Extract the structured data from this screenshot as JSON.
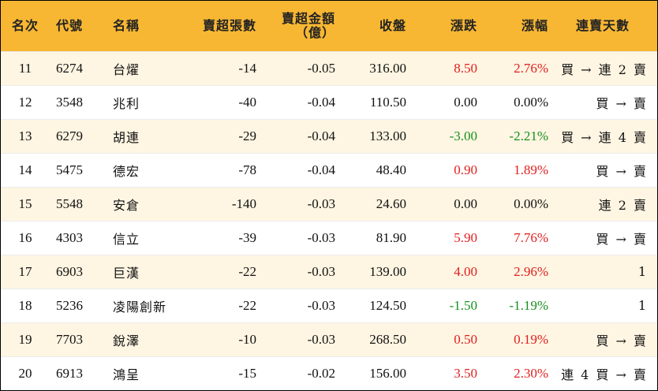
{
  "headers": {
    "rank": "名次",
    "code": "代號",
    "name": "名稱",
    "net_sell_lots": "賣超張數",
    "net_sell_amount_line1": "賣超金額",
    "net_sell_amount_line2": "（億）",
    "close": "收盤",
    "change": "漲跌",
    "change_pct": "漲幅",
    "streak": "連賣天數"
  },
  "colors": {
    "header_bg": "#f7b733",
    "stripe_bg": "#fef5e2",
    "up": "#e02020",
    "down": "#17901f"
  },
  "rows": [
    {
      "rank": "11",
      "code": "6274",
      "name": "台燿",
      "lots": "-14",
      "amount": "-0.05",
      "close": "316.00",
      "change": "8.50",
      "change_pct": "2.76%",
      "dir": "pos",
      "streak": "買 → 連 2 賣"
    },
    {
      "rank": "12",
      "code": "3548",
      "name": "兆利",
      "lots": "-40",
      "amount": "-0.04",
      "close": "110.50",
      "change": "0.00",
      "change_pct": "0.00%",
      "dir": "zero",
      "streak": "買 → 賣"
    },
    {
      "rank": "13",
      "code": "6279",
      "name": "胡連",
      "lots": "-29",
      "amount": "-0.04",
      "close": "133.00",
      "change": "-3.00",
      "change_pct": "-2.21%",
      "dir": "neg",
      "streak": "買 → 連 4 賣"
    },
    {
      "rank": "14",
      "code": "5475",
      "name": "德宏",
      "lots": "-78",
      "amount": "-0.04",
      "close": "48.40",
      "change": "0.90",
      "change_pct": "1.89%",
      "dir": "pos",
      "streak": "買 → 賣"
    },
    {
      "rank": "15",
      "code": "5548",
      "name": "安倉",
      "lots": "-140",
      "amount": "-0.03",
      "close": "24.60",
      "change": "0.00",
      "change_pct": "0.00%",
      "dir": "zero",
      "streak": "連 2 賣"
    },
    {
      "rank": "16",
      "code": "4303",
      "name": "信立",
      "lots": "-39",
      "amount": "-0.03",
      "close": "81.90",
      "change": "5.90",
      "change_pct": "7.76%",
      "dir": "pos",
      "streak": "買 → 賣"
    },
    {
      "rank": "17",
      "code": "6903",
      "name": "巨漢",
      "lots": "-22",
      "amount": "-0.03",
      "close": "139.00",
      "change": "4.00",
      "change_pct": "2.96%",
      "dir": "pos",
      "streak": "1"
    },
    {
      "rank": "18",
      "code": "5236",
      "name": "凌陽創新",
      "lots": "-22",
      "amount": "-0.03",
      "close": "124.50",
      "change": "-1.50",
      "change_pct": "-1.19%",
      "dir": "neg",
      "streak": "1"
    },
    {
      "rank": "19",
      "code": "7703",
      "name": "銳澤",
      "lots": "-10",
      "amount": "-0.03",
      "close": "268.50",
      "change": "0.50",
      "change_pct": "0.19%",
      "dir": "pos",
      "streak": "買 → 賣"
    },
    {
      "rank": "20",
      "code": "6913",
      "name": "鴻呈",
      "lots": "-15",
      "amount": "-0.02",
      "close": "156.00",
      "change": "3.50",
      "change_pct": "2.30%",
      "dir": "pos",
      "streak": "連 4 買 → 賣"
    }
  ]
}
